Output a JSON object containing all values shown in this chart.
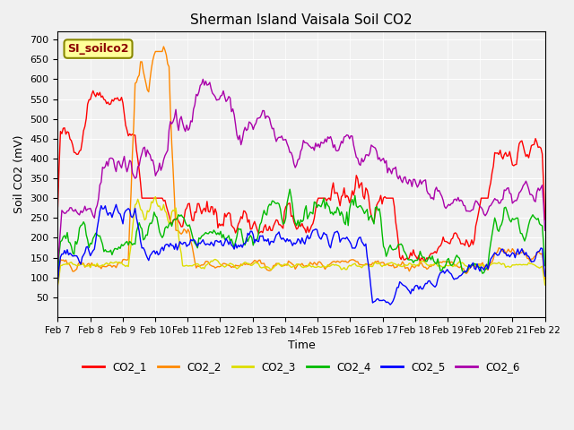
{
  "title": "Sherman Island Vaisala Soil CO2",
  "xlabel": "Time",
  "ylabel": "Soil CO2 (mV)",
  "annotation": "SI_soilco2",
  "ylim": [
    0,
    720
  ],
  "yticks": [
    50,
    100,
    150,
    200,
    250,
    300,
    350,
    400,
    450,
    500,
    550,
    600,
    650,
    700
  ],
  "xtick_labels": [
    "Feb 7",
    "Feb 8",
    "Feb 9",
    "Feb 10",
    "Feb 11",
    "Feb 12",
    "Feb 13",
    "Feb 14",
    "Feb 15",
    "Feb 16",
    "Feb 17",
    "Feb 18",
    "Feb 19",
    "Feb 20",
    "Feb 21",
    "Feb 22"
  ],
  "series_colors": {
    "CO2_1": "#ff0000",
    "CO2_2": "#ff8800",
    "CO2_3": "#dddd00",
    "CO2_4": "#00bb00",
    "CO2_5": "#0000ff",
    "CO2_6": "#aa00aa"
  },
  "n_points": 360,
  "background_color": "#f0f0f0",
  "plot_bg": "#ffffff"
}
